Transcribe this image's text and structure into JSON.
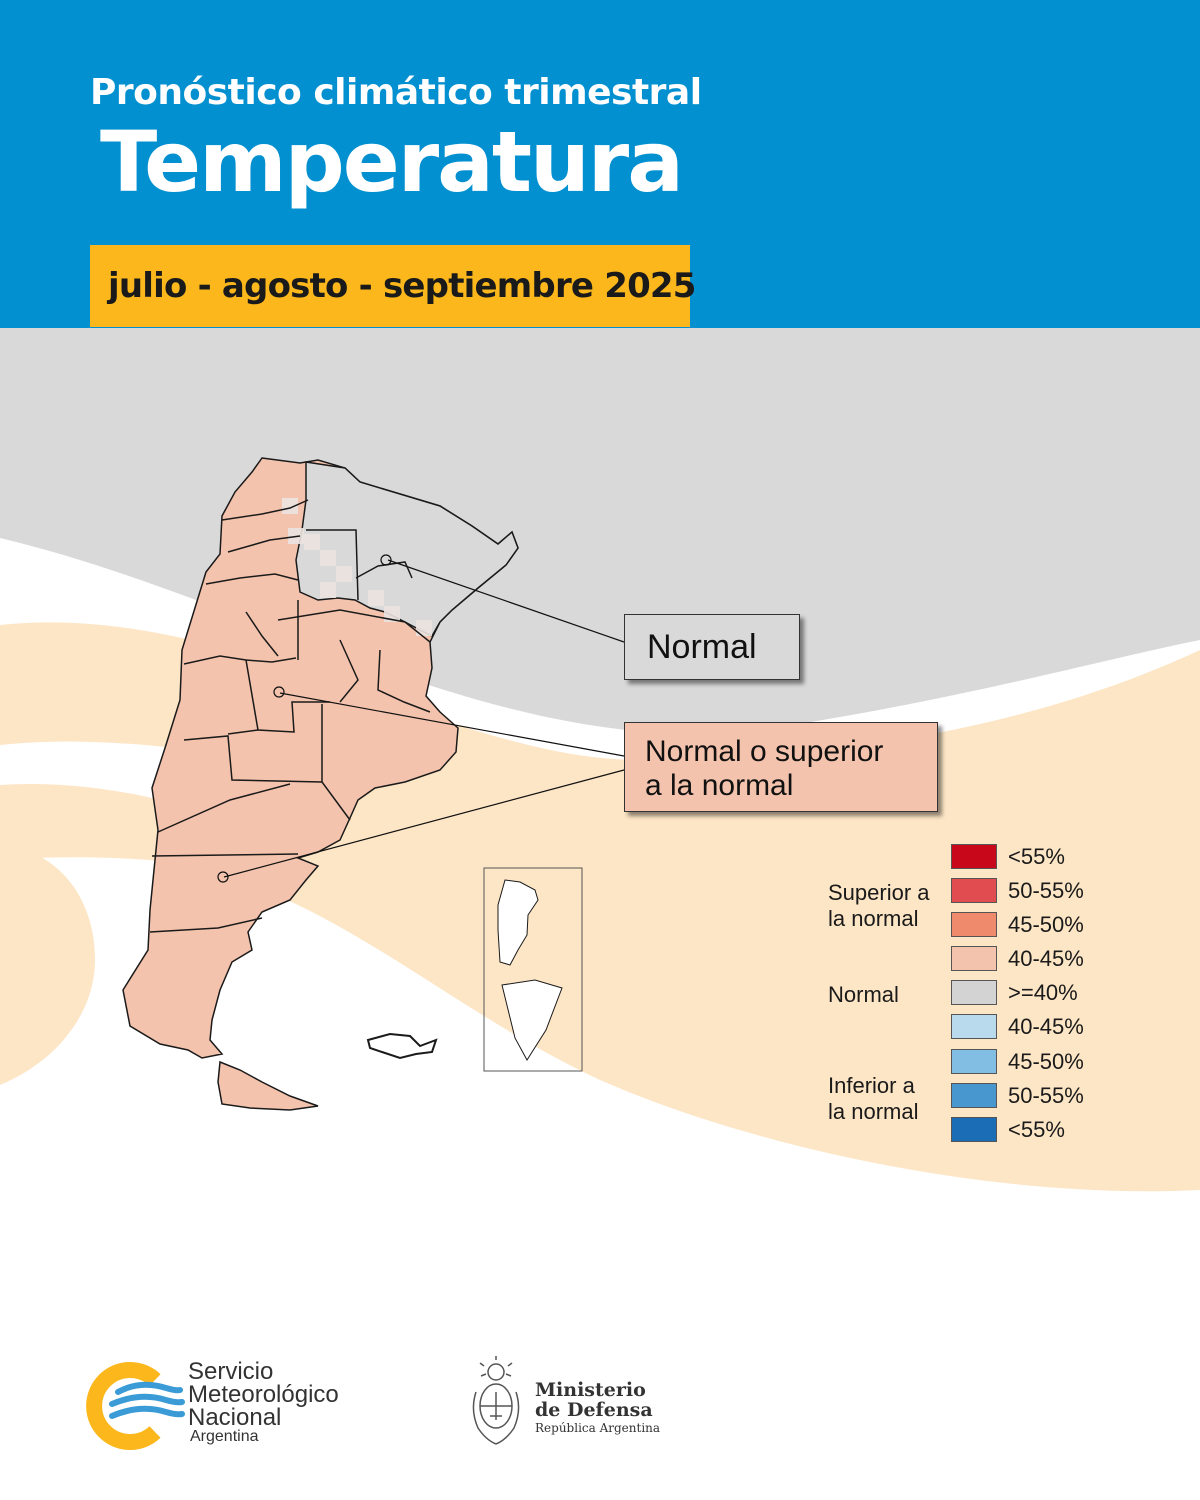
{
  "header": {
    "kicker": "Pronóstico climático trimestral",
    "title": "Temperatura",
    "period": "julio - agosto - septiembre 2025"
  },
  "colors": {
    "header_blue": "#0390d0",
    "period_yellow": "#fbb71b",
    "background_gray": "#d9d9d9",
    "background_cream": "#fde6c6",
    "map_fill_superior": "#f4c3ad",
    "map_fill_normal": "#d9d9d9"
  },
  "map": {
    "callouts": {
      "normal": "Normal",
      "superior_line1": "Normal o superior",
      "superior_line2": "a la normal"
    }
  },
  "legend": {
    "groups": {
      "superior_line1": "Superior a",
      "superior_line2": "la normal",
      "normal": "Normal",
      "inferior_line1": "Inferior a",
      "inferior_line2": "la normal"
    },
    "items": [
      {
        "label": "<55%",
        "color": "#c9071b"
      },
      {
        "label": "50-55%",
        "color": "#e04c50"
      },
      {
        "label": "45-50%",
        "color": "#f08a6c"
      },
      {
        "label": "40-45%",
        "color": "#f4c3ad"
      },
      {
        "label": ">=40%",
        "color": "#d3d3d3"
      },
      {
        "label": "40-45%",
        "color": "#b9d9ec"
      },
      {
        "label": "45-50%",
        "color": "#82bde3"
      },
      {
        "label": "50-55%",
        "color": "#4997cf"
      },
      {
        "label": "<55%",
        "color": "#1b6db6"
      }
    ]
  },
  "footer": {
    "smn_line1": "Servicio",
    "smn_line2": "Meteorológico",
    "smn_line3": "Nacional",
    "smn_country": "Argentina",
    "mod_line1": "Ministerio",
    "mod_line2": "de Defensa",
    "mod_sub": "República Argentina"
  }
}
